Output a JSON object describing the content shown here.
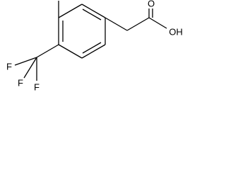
{
  "atoms": [
    {
      "label": "F"
    },
    {
      "label": "F"
    },
    {
      "label": "F"
    },
    {
      "label": "O"
    },
    {
      "label": "OH"
    }
  ]
}
